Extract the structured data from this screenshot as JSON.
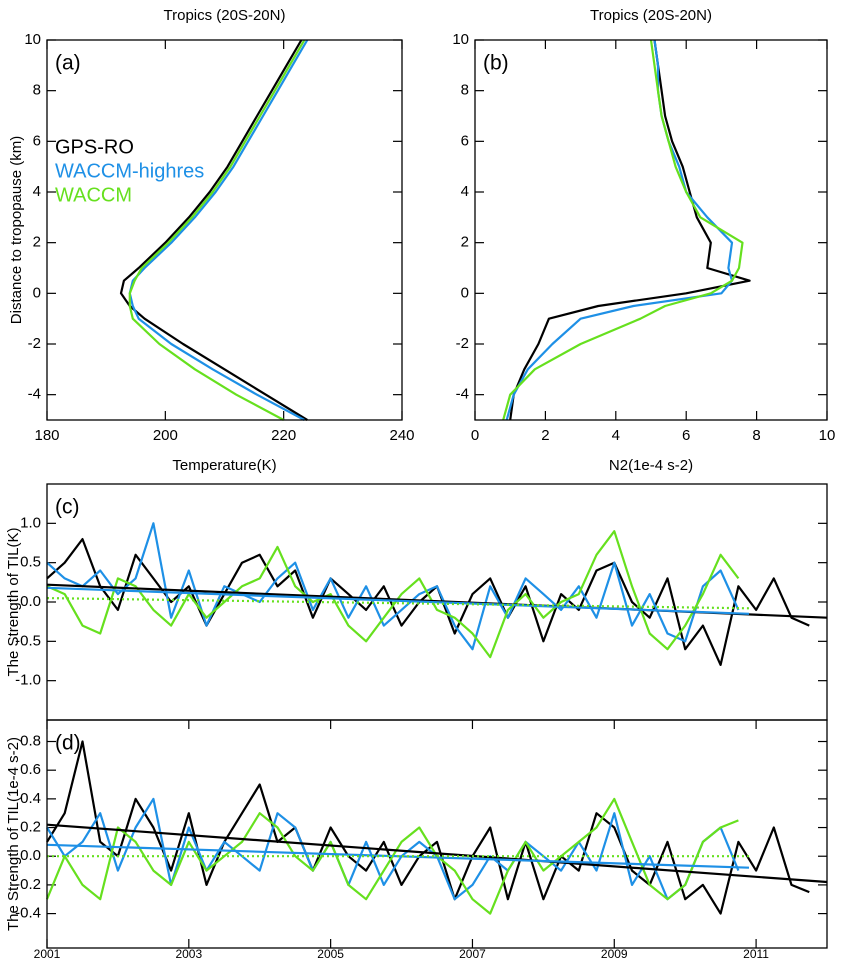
{
  "chart_data": [
    {
      "type": "profile",
      "title": "Tropics (20S-20N)",
      "panel_label": "(a)",
      "x_label": "Temperature(K)",
      "y_label": "Distance to tropopause (km)",
      "xlim": [
        180,
        240
      ],
      "xticks": [
        180,
        200,
        220,
        240
      ],
      "ylim": [
        -5,
        10
      ],
      "yticks": [
        -4,
        -2,
        0,
        2,
        4,
        6,
        8,
        10
      ],
      "legend": "upper left",
      "levels": [
        -5,
        -4,
        -3,
        -2,
        -1,
        -0.5,
        0,
        0.5,
        1,
        2,
        3,
        4,
        5,
        6,
        7,
        8,
        9,
        10
      ],
      "series": [
        {
          "name": "GPS-RO",
          "color": "#000000",
          "values": [
            224,
            217,
            210,
            203,
            196.5,
            194,
            192.5,
            193,
            195.5,
            200,
            204,
            207.5,
            210.5,
            213,
            215.5,
            218,
            220.5,
            223
          ]
        },
        {
          "name": "WACCM-highres",
          "color": "#1e90e6",
          "values": [
            223.5,
            215.5,
            208,
            201,
            195.5,
            194.5,
            194,
            194.5,
            196.5,
            201,
            205,
            208.5,
            211.5,
            214,
            216.5,
            219,
            221.5,
            224
          ]
        },
        {
          "name": "WACCM",
          "color": "#66e01e",
          "values": [
            220,
            212,
            205,
            199,
            194.5,
            194,
            194,
            194.8,
            196,
            200.5,
            204.5,
            208,
            211,
            213.5,
            216,
            218.5,
            221,
            223.5
          ]
        }
      ]
    },
    {
      "type": "profile",
      "title": "Tropics (20S-20N)",
      "panel_label": "(b)",
      "x_label": "N2(1e-4 s-2)",
      "xlim": [
        0,
        10
      ],
      "xticks": [
        0,
        2,
        4,
        6,
        8,
        10
      ],
      "ylim": [
        -5,
        10
      ],
      "yticks": [
        -4,
        -2,
        0,
        2,
        4,
        6,
        8,
        10
      ],
      "levels": [
        -5,
        -4,
        -3,
        -2,
        -1,
        -0.5,
        0,
        0.5,
        1,
        2,
        3,
        4,
        5,
        6,
        7,
        8,
        9,
        10
      ],
      "series": [
        {
          "color": "#000000",
          "values": [
            1.0,
            1.1,
            1.4,
            1.8,
            2.1,
            3.5,
            6.0,
            7.8,
            6.6,
            6.7,
            6.3,
            6.1,
            5.9,
            5.6,
            5.4,
            5.3,
            5.2,
            5.1
          ]
        },
        {
          "color": "#1e90e6",
          "values": [
            0.9,
            1.1,
            1.5,
            2.2,
            3.0,
            4.5,
            7.0,
            7.3,
            7.2,
            7.3,
            6.6,
            6.0,
            5.8,
            5.5,
            5.3,
            5.2,
            5.2,
            5.1
          ]
        },
        {
          "color": "#66e01e",
          "values": [
            0.8,
            1.0,
            1.7,
            3.0,
            4.7,
            5.4,
            6.7,
            7.3,
            7.5,
            7.6,
            6.4,
            6.0,
            5.7,
            5.5,
            5.3,
            5.2,
            5.1,
            5.0
          ]
        }
      ]
    },
    {
      "type": "line",
      "panel_label": "(c)",
      "y_label": "The Strength of TIL(K)",
      "xlim": [
        2001,
        2012
      ],
      "ylim": [
        -1.5,
        1.5
      ],
      "yticks": [
        {
          "value": -1,
          "label": "-1.0"
        },
        -0.5,
        {
          "value": 0,
          "label": "0.0"
        },
        0.5,
        {
          "value": 1,
          "label": "1.0"
        }
      ],
      "x": [
        2001,
        2001.25,
        2001.5,
        2001.75,
        2002,
        2002.25,
        2002.5,
        2002.75,
        2003,
        2003.25,
        2003.5,
        2003.75,
        2004,
        2004.25,
        2004.5,
        2004.75,
        2005,
        2005.25,
        2005.5,
        2005.75,
        2006,
        2006.25,
        2006.5,
        2006.75,
        2007,
        2007.25,
        2007.5,
        2007.75,
        2008,
        2008.25,
        2008.5,
        2008.75,
        2009,
        2009.25,
        2009.5,
        2009.75,
        2010,
        2010.25,
        2010.5,
        2010.75,
        2011,
        2011.25,
        2011.5,
        2011.75
      ],
      "series": [
        {
          "color": "#000000",
          "values": [
            0.3,
            0.5,
            0.8,
            0.2,
            -0.1,
            0.6,
            0.3,
            0.0,
            0.2,
            -0.3,
            0.1,
            0.5,
            0.6,
            0.2,
            0.4,
            -0.2,
            0.3,
            0.1,
            -0.1,
            0.2,
            -0.3,
            0.0,
            0.2,
            -0.4,
            0.1,
            0.3,
            -0.2,
            0.2,
            -0.5,
            0.1,
            -0.1,
            0.4,
            0.5,
            0.0,
            -0.2,
            0.3,
            -0.6,
            -0.3,
            -0.8,
            0.2,
            -0.1,
            0.3,
            -0.2,
            -0.3
          ]
        },
        {
          "color": "#1e90e6",
          "values": [
            0.5,
            0.3,
            0.2,
            0.4,
            0.1,
            0.3,
            1.0,
            -0.2,
            0.4,
            -0.3,
            0.2,
            0.1,
            0.0,
            0.3,
            0.5,
            -0.1,
            0.3,
            -0.2,
            0.2,
            -0.3,
            -0.1,
            0.1,
            0.2,
            -0.3,
            -0.6,
            0.2,
            -0.2,
            0.3,
            0.1,
            -0.1,
            0.2,
            -0.2,
            0.5,
            -0.3,
            0.1,
            -0.4,
            -0.5,
            0.2,
            0.4,
            -0.1,
            null,
            null,
            null,
            null
          ]
        },
        {
          "color": "#66e01e",
          "values": [
            0.2,
            0.1,
            -0.3,
            -0.4,
            0.3,
            0.2,
            -0.1,
            -0.3,
            0.1,
            -0.2,
            0.0,
            0.2,
            0.3,
            0.7,
            0.2,
            0.0,
            0.1,
            -0.3,
            -0.5,
            -0.2,
            0.1,
            0.3,
            -0.1,
            -0.2,
            -0.4,
            -0.7,
            -0.1,
            0.1,
            -0.2,
            0.0,
            0.1,
            0.6,
            0.9,
            0.2,
            -0.4,
            -0.6,
            -0.3,
            0.1,
            0.6,
            0.3,
            null,
            null,
            null,
            null
          ]
        }
      ],
      "trends": [
        {
          "color": "#000000",
          "x": [
            2001,
            2012
          ],
          "values": [
            0.22,
            -0.2
          ]
        },
        {
          "color": "#1e90e6",
          "x": [
            2001,
            2010.9
          ],
          "values": [
            0.18,
            -0.15
          ]
        },
        {
          "color": "#66e01e",
          "x": [
            2001,
            2010.9
          ],
          "values": [
            0.05,
            -0.08
          ],
          "dashed": true
        }
      ]
    },
    {
      "type": "line",
      "panel_label": "(d)",
      "y_label": "The Strength of TIL(1e-4 s-2)",
      "xlim": [
        2001,
        2012
      ],
      "xticks": [
        2001,
        2003,
        2005,
        2007,
        2009,
        2011
      ],
      "ylim": [
        -0.64,
        0.95
      ],
      "yticks": [
        -0.4,
        -0.2,
        {
          "value": 0,
          "label": "0.0"
        },
        0.2,
        0.4,
        0.6,
        0.8
      ],
      "x": [
        2001,
        2001.25,
        2001.5,
        2001.75,
        2002,
        2002.25,
        2002.5,
        2002.75,
        2003,
        2003.25,
        2003.5,
        2003.75,
        2004,
        2004.25,
        2004.5,
        2004.75,
        2005,
        2005.25,
        2005.5,
        2005.75,
        2006,
        2006.25,
        2006.5,
        2006.75,
        2007,
        2007.25,
        2007.5,
        2007.75,
        2008,
        2008.25,
        2008.5,
        2008.75,
        2009,
        2009.25,
        2009.5,
        2009.75,
        2010,
        2010.25,
        2010.5,
        2010.75,
        2011,
        2011.25,
        2011.5,
        2011.75
      ],
      "series": [
        {
          "color": "#000000",
          "values": [
            0.1,
            0.3,
            0.8,
            0.1,
            0.0,
            0.4,
            0.2,
            -0.1,
            0.3,
            -0.2,
            0.1,
            0.3,
            0.5,
            0.1,
            0.2,
            -0.1,
            0.2,
            0.0,
            -0.1,
            0.1,
            -0.2,
            0.0,
            0.1,
            -0.3,
            0.0,
            0.2,
            -0.3,
            0.1,
            -0.3,
            0.0,
            -0.1,
            0.3,
            0.2,
            -0.1,
            -0.2,
            0.1,
            -0.3,
            -0.2,
            -0.4,
            0.1,
            -0.1,
            0.2,
            -0.2,
            -0.25
          ]
        },
        {
          "color": "#1e90e6",
          "values": [
            0.2,
            0.0,
            0.1,
            0.3,
            -0.1,
            0.2,
            0.4,
            -0.2,
            0.2,
            -0.1,
            0.1,
            0.0,
            -0.1,
            0.3,
            0.2,
            -0.1,
            0.1,
            -0.2,
            0.1,
            -0.2,
            0.0,
            0.1,
            0.0,
            -0.3,
            -0.2,
            0.0,
            -0.1,
            0.1,
            0.0,
            -0.1,
            0.1,
            -0.1,
            0.3,
            -0.2,
            0.0,
            -0.3,
            -0.2,
            0.1,
            0.2,
            -0.1,
            null,
            null,
            null,
            null
          ]
        },
        {
          "color": "#66e01e",
          "values": [
            -0.3,
            0.0,
            -0.2,
            -0.3,
            0.2,
            0.1,
            -0.1,
            -0.2,
            0.1,
            -0.1,
            0.0,
            0.1,
            0.3,
            0.2,
            0.0,
            -0.1,
            0.1,
            -0.2,
            -0.3,
            -0.1,
            0.1,
            0.2,
            0.0,
            -0.1,
            -0.3,
            -0.4,
            -0.1,
            0.1,
            -0.1,
            0.0,
            0.1,
            0.2,
            0.4,
            0.1,
            -0.2,
            -0.3,
            -0.2,
            0.1,
            0.2,
            0.25,
            null,
            null,
            null,
            null
          ]
        }
      ],
      "trends": [
        {
          "color": "#000000",
          "x": [
            2001,
            2012
          ],
          "values": [
            0.22,
            -0.18
          ]
        },
        {
          "color": "#1e90e6",
          "x": [
            2001,
            2010.9
          ],
          "values": [
            0.08,
            -0.08
          ]
        },
        {
          "color": "#66e01e",
          "x": [
            2001,
            2010.9
          ],
          "values": [
            0.0,
            0.0
          ],
          "dashed": true
        }
      ]
    }
  ]
}
